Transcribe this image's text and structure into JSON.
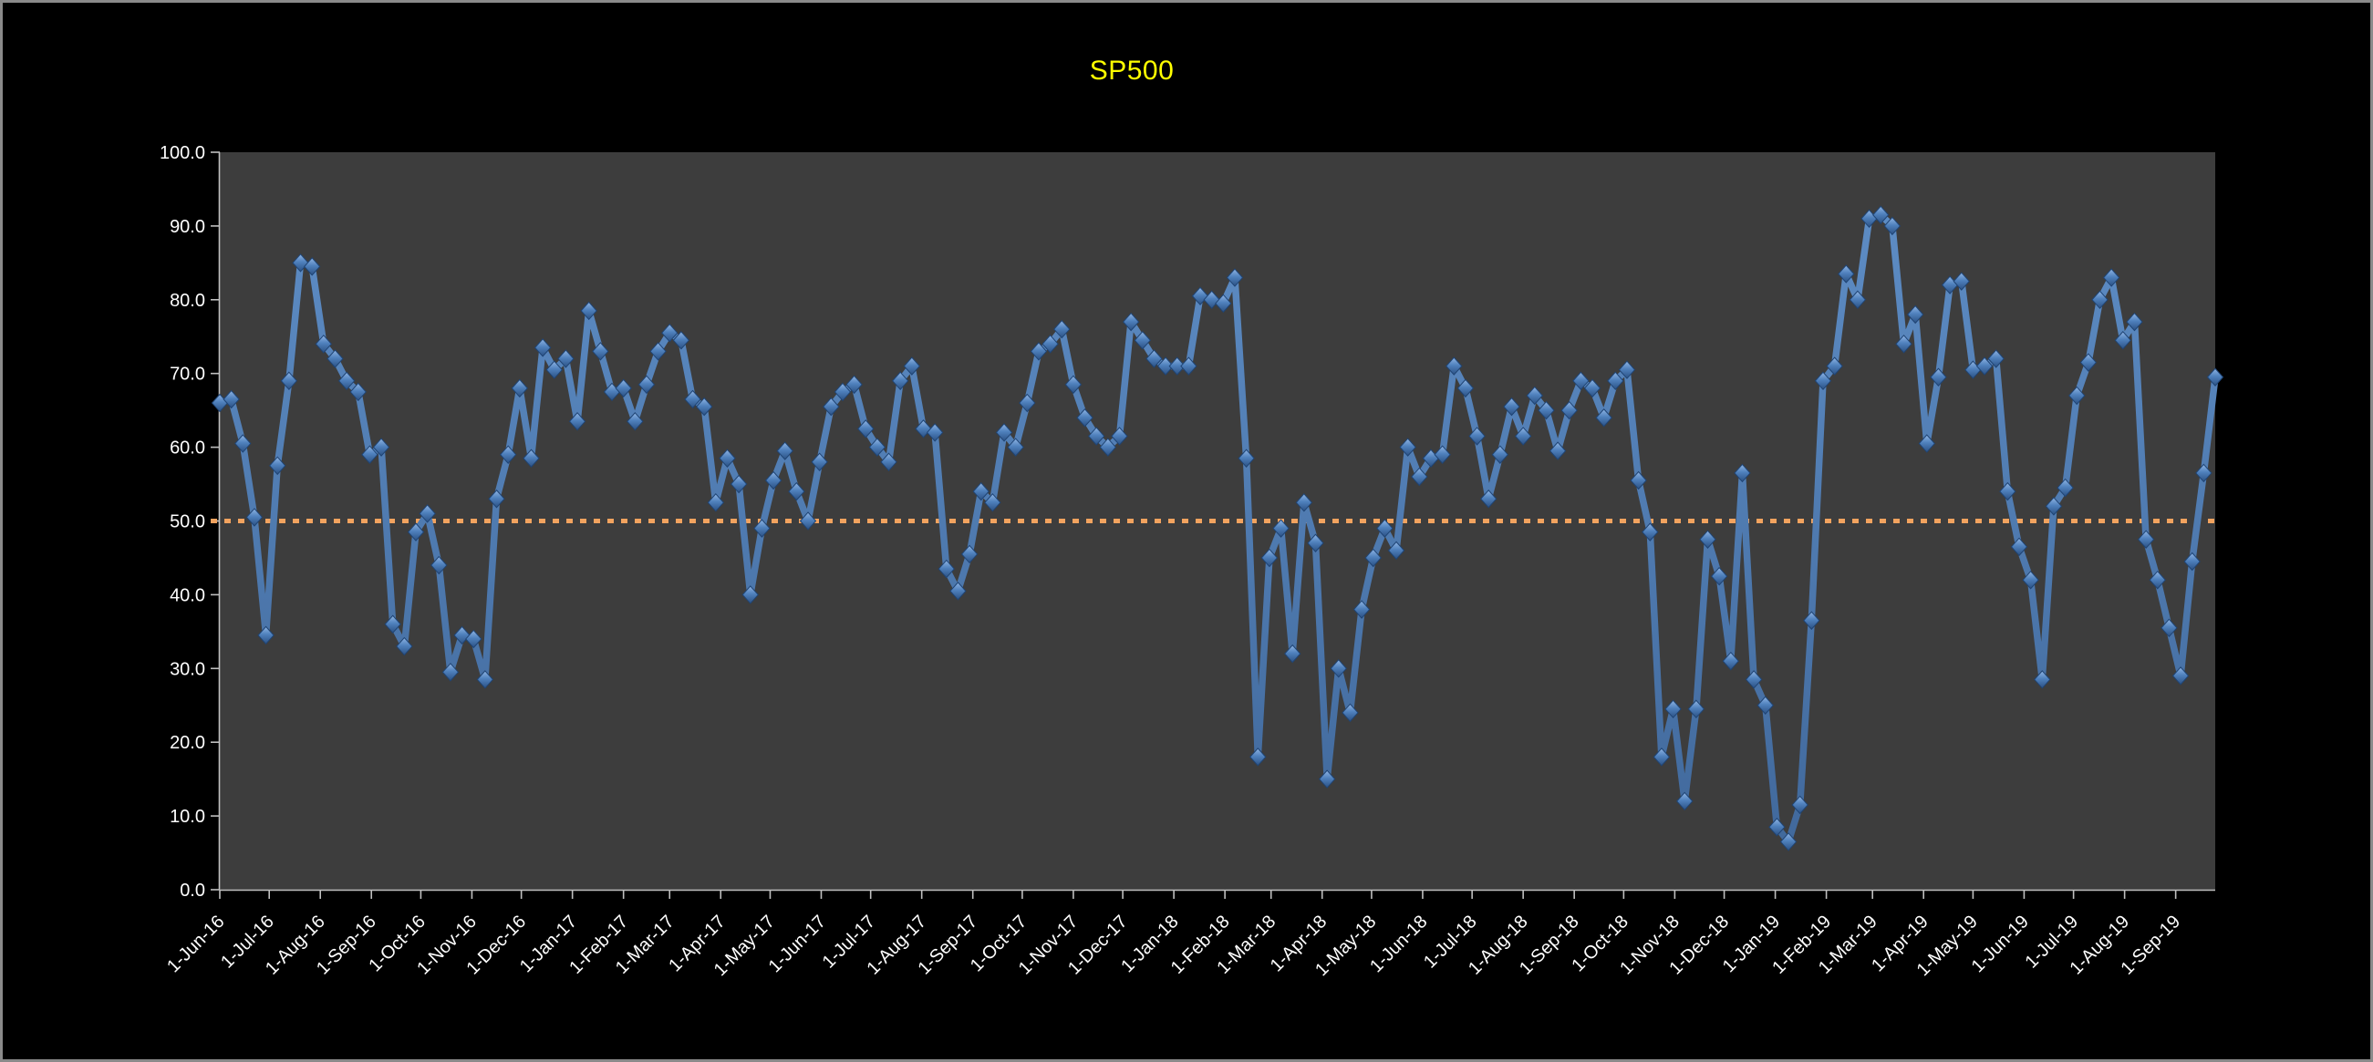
{
  "chart_data": {
    "type": "line",
    "title": "SP500",
    "series": [
      {
        "name": "SP500",
        "start_date": "2016-06-01",
        "interval_days": 7,
        "values": [
          66,
          66.5,
          60.5,
          50.5,
          34.5,
          57.5,
          69,
          85,
          84.5,
          74,
          72,
          69,
          67.5,
          59,
          60,
          36,
          33,
          48.5,
          51,
          44,
          29.5,
          34.5,
          34,
          28.5,
          53,
          59,
          68,
          58.5,
          73.5,
          70.5,
          72,
          63.5,
          78.5,
          73,
          67.5,
          68,
          63.5,
          68.5,
          73,
          75.5,
          74.5,
          66.5,
          65.5,
          52.5,
          58.5,
          55,
          40,
          49,
          55.5,
          59.5,
          54,
          50,
          58,
          65.5,
          67.5,
          68.5,
          62.5,
          60,
          58,
          69,
          71,
          62.5,
          62,
          43.5,
          40.5,
          45.5,
          54,
          52.5,
          62,
          60,
          66,
          73,
          74,
          76,
          68.5,
          64,
          61.5,
          60,
          61.5,
          77,
          74.5,
          72,
          71,
          71,
          71,
          80.5,
          80,
          79.5,
          83,
          58.5,
          18,
          45,
          49,
          32,
          52.5,
          47,
          15,
          30,
          24,
          38,
          45,
          49,
          46,
          60,
          56,
          58.5,
          59,
          71,
          68,
          61.5,
          53,
          59,
          65.5,
          61.5,
          67,
          65,
          59.5,
          65,
          69,
          68,
          64,
          69,
          70.5,
          55.5,
          48.5,
          18,
          24.5,
          12,
          24.5,
          47.5,
          42.5,
          31,
          56.5,
          28.5,
          25,
          8.5,
          6.5,
          11.5,
          36.5,
          69,
          71,
          83.5,
          80,
          91,
          91.5,
          90,
          74,
          78,
          60.5,
          69.5,
          82,
          82.5,
          70.5,
          71,
          72,
          54,
          46.5,
          42,
          28.5,
          52,
          54.5,
          67,
          71.5,
          80,
          83,
          74.5,
          77,
          47.5,
          42,
          35.5,
          29,
          44.5,
          56.5,
          69.5
        ]
      }
    ],
    "x_tick_labels": [
      "1-Jun-16",
      "1-Jul-16",
      "1-Aug-16",
      "1-Sep-16",
      "1-Oct-16",
      "1-Nov-16",
      "1-Dec-16",
      "1-Jan-17",
      "1-Feb-17",
      "1-Mar-17",
      "1-Apr-17",
      "1-May-17",
      "1-Jun-17",
      "1-Jul-17",
      "1-Aug-17",
      "1-Sep-17",
      "1-Oct-17",
      "1-Nov-17",
      "1-Dec-17",
      "1-Jan-18",
      "1-Feb-18",
      "1-Mar-18",
      "1-Apr-18",
      "1-May-18",
      "1-Jun-18",
      "1-Jul-18",
      "1-Aug-18",
      "1-Sep-18",
      "1-Oct-18",
      "1-Nov-18",
      "1-Dec-18",
      "1-Jan-19",
      "1-Feb-19",
      "1-Mar-19",
      "1-Apr-19",
      "1-May-19",
      "1-Jun-19",
      "1-Jul-19",
      "1-Aug-19",
      "1-Sep-19"
    ],
    "y_tick_labels": [
      "0.0",
      "10.0",
      "20.0",
      "30.0",
      "40.0",
      "50.0",
      "60.0",
      "70.0",
      "80.0",
      "90.0",
      "100.0"
    ],
    "ylim": [
      0,
      100
    ],
    "reference_line": {
      "value": 50,
      "style": "dotted"
    },
    "grid": "off",
    "legend": "none",
    "colors": {
      "title": "#ffff00",
      "line": "#4d7fba",
      "marker_light": "#86aedd",
      "marker_mid": "#4f81bd",
      "marker_dark": "#2b5184",
      "marker_edge": "#1f4474",
      "reference": "#f2a35f",
      "plot_background": "#3d3d3d",
      "chart_background": "#000000",
      "axis": "#bfbfbf",
      "tick_text": "#ffffff"
    }
  }
}
